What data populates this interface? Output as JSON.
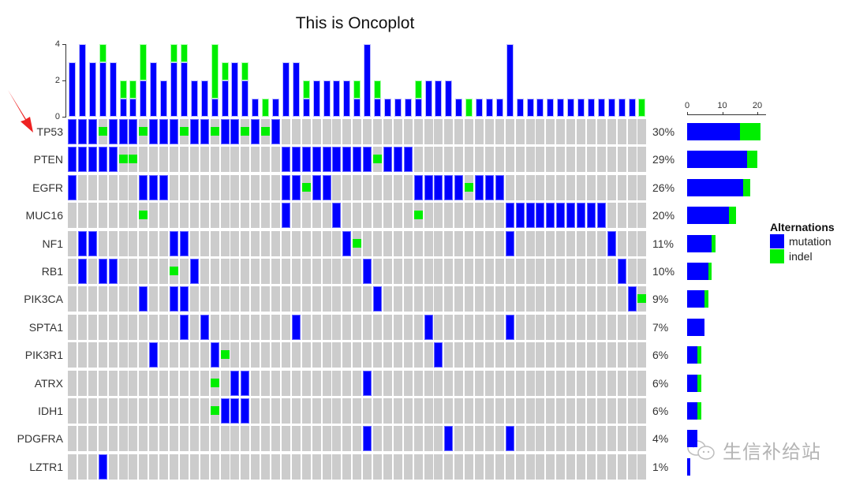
{
  "chart_data": {
    "type": "oncoplot",
    "title": "This is Oncoplot",
    "n_samples": 57,
    "colors": {
      "mutation": "#0000ff",
      "indel": "#00ee00",
      "none": "#cccccc"
    },
    "legend": {
      "title": "Alternations",
      "items": [
        {
          "label": "mutation",
          "color": "#0000ff"
        },
        {
          "label": "indel",
          "color": "#00ee00"
        }
      ]
    },
    "top_axis": {
      "ticks": [
        0,
        2,
        4
      ],
      "ylim": [
        0,
        4
      ]
    },
    "right_axis": {
      "ticks": [
        0,
        10,
        20
      ],
      "xlim": [
        0,
        22
      ]
    },
    "genes": [
      {
        "name": "TP53",
        "pct": "30%",
        "mutation": [
          1,
          2,
          3,
          5,
          6,
          7,
          9,
          10,
          11,
          13,
          14,
          16,
          17,
          19,
          21
        ],
        "indel": [
          4,
          8,
          12,
          15,
          18,
          20
        ]
      },
      {
        "name": "PTEN",
        "pct": "29%",
        "mutation": [
          1,
          2,
          3,
          4,
          5,
          22,
          23,
          24,
          25,
          26,
          27,
          28,
          29,
          30,
          32,
          33,
          34
        ],
        "indel": [
          6,
          7,
          31
        ]
      },
      {
        "name": "EGFR",
        "pct": "26%",
        "mutation": [
          1,
          8,
          9,
          10,
          22,
          23,
          25,
          26,
          35,
          36,
          37,
          38,
          39,
          41,
          42,
          43
        ],
        "indel": [
          24,
          40
        ]
      },
      {
        "name": "MUC16",
        "pct": "20%",
        "mutation": [
          22,
          27,
          44,
          45,
          46,
          47,
          48,
          49,
          50,
          51,
          52,
          53
        ],
        "indel": [
          8,
          35
        ]
      },
      {
        "name": "NF1",
        "pct": "11%",
        "mutation": [
          2,
          3,
          11,
          12,
          28,
          44,
          54
        ],
        "indel": [
          29
        ]
      },
      {
        "name": "RB1",
        "pct": "10%",
        "mutation": [
          2,
          4,
          5,
          13,
          30,
          55
        ],
        "indel": [
          11
        ]
      },
      {
        "name": "PIK3CA",
        "pct": "9%",
        "mutation": [
          8,
          11,
          12,
          31,
          56
        ],
        "indel": [
          57
        ]
      },
      {
        "name": "SPTA1",
        "pct": "7%",
        "mutation": [
          12,
          14,
          23,
          36,
          44
        ],
        "indel": []
      },
      {
        "name": "PIK3R1",
        "pct": "6%",
        "mutation": [
          9,
          15,
          37
        ],
        "indel": [
          16
        ]
      },
      {
        "name": "ATRX",
        "pct": "6%",
        "mutation": [
          17,
          18,
          30
        ],
        "indel": [
          15
        ]
      },
      {
        "name": "IDH1",
        "pct": "6%",
        "mutation": [
          16,
          17,
          18
        ],
        "indel": [
          15
        ]
      },
      {
        "name": "PDGFRA",
        "pct": "4%",
        "mutation": [
          30,
          38,
          44
        ],
        "indel": []
      },
      {
        "name": "LZTR1",
        "pct": "1%",
        "mutation": [
          4
        ],
        "indel": []
      }
    ]
  },
  "annotations": {
    "watermark": "生信补给站"
  }
}
